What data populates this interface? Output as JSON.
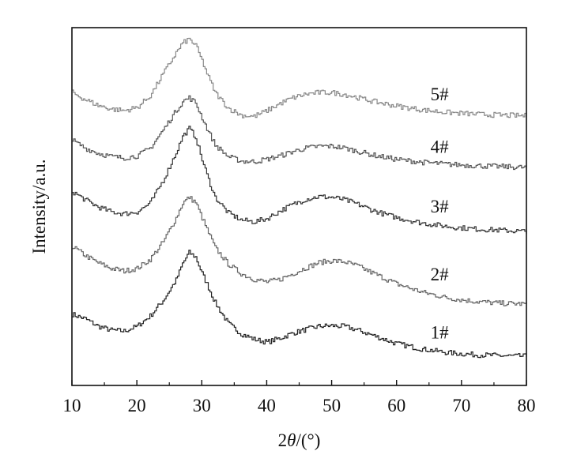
{
  "chart_data": {
    "type": "line",
    "xlabel_prefix": "2",
    "xlabel_theta": "θ",
    "xlabel_suffix": "/(°)",
    "ylabel": "Intensity/a.u.",
    "xlim": [
      10,
      80
    ],
    "ylim": [
      0,
      1
    ],
    "xticks": [
      10,
      20,
      30,
      40,
      50,
      60,
      70,
      80
    ],
    "y_ticks_labeled": false,
    "grid": false,
    "line_color": "#333333",
    "series": [
      {
        "name": "1#",
        "color": "#222222",
        "x": [
          10,
          12,
          14,
          16,
          18,
          20,
          22,
          24,
          26,
          27,
          28,
          29,
          30,
          31,
          32,
          34,
          36,
          38,
          40,
          42,
          44,
          46,
          48,
          50,
          52,
          54,
          56,
          58,
          60,
          64,
          68,
          72,
          76,
          80
        ],
        "y": [
          0.176,
          0.162,
          0.139,
          0.127,
          0.124,
          0.139,
          0.171,
          0.219,
          0.282,
          0.333,
          0.367,
          0.353,
          0.303,
          0.258,
          0.212,
          0.148,
          0.116,
          0.099,
          0.09,
          0.102,
          0.118,
          0.129,
          0.139,
          0.141,
          0.138,
          0.127,
          0.113,
          0.099,
          0.085,
          0.068,
          0.057,
          0.051,
          0.048,
          0.046
        ]
      },
      {
        "name": "2#",
        "color": "#666666",
        "x": [
          10,
          12,
          14,
          16,
          18,
          20,
          22,
          24,
          26,
          27,
          28,
          29,
          30,
          31,
          32,
          34,
          36,
          38,
          40,
          42,
          44,
          46,
          48,
          50,
          52,
          54,
          56,
          58,
          60,
          64,
          68,
          72,
          76,
          80
        ],
        "y": [
          0.386,
          0.358,
          0.335,
          0.318,
          0.31,
          0.318,
          0.346,
          0.4,
          0.474,
          0.52,
          0.538,
          0.522,
          0.474,
          0.427,
          0.382,
          0.332,
          0.302,
          0.284,
          0.276,
          0.284,
          0.302,
          0.32,
          0.336,
          0.342,
          0.338,
          0.325,
          0.306,
          0.288,
          0.27,
          0.244,
          0.226,
          0.216,
          0.21,
          0.208
        ]
      },
      {
        "name": "3#",
        "color": "#333333",
        "x": [
          10,
          12,
          14,
          16,
          18,
          20,
          22,
          24,
          26,
          27,
          28,
          29,
          30,
          31,
          32,
          34,
          36,
          38,
          40,
          42,
          44,
          46,
          48,
          50,
          52,
          54,
          56,
          58,
          60,
          64,
          68,
          72,
          76,
          80
        ],
        "y": [
          0.556,
          0.53,
          0.508,
          0.493,
          0.487,
          0.493,
          0.52,
          0.59,
          0.676,
          0.726,
          0.751,
          0.724,
          0.654,
          0.592,
          0.538,
          0.49,
          0.468,
          0.462,
          0.472,
          0.496,
          0.516,
          0.532,
          0.54,
          0.538,
          0.53,
          0.516,
          0.5,
          0.486,
          0.475,
          0.458,
          0.447,
          0.44,
          0.436,
          0.432
        ]
      },
      {
        "name": "4#",
        "color": "#555555",
        "x": [
          10,
          12,
          14,
          16,
          18,
          20,
          22,
          24,
          26,
          27,
          28,
          29,
          30,
          31,
          32,
          34,
          36,
          38,
          40,
          42,
          44,
          46,
          48,
          50,
          52,
          54,
          56,
          58,
          60,
          64,
          68,
          72,
          76,
          80
        ],
        "y": [
          0.714,
          0.69,
          0.674,
          0.664,
          0.66,
          0.666,
          0.69,
          0.746,
          0.806,
          0.834,
          0.846,
          0.83,
          0.784,
          0.74,
          0.7,
          0.664,
          0.65,
          0.648,
          0.656,
          0.666,
          0.68,
          0.69,
          0.696,
          0.696,
          0.69,
          0.68,
          0.67,
          0.662,
          0.655,
          0.646,
          0.64,
          0.636,
          0.633,
          0.63
        ]
      },
      {
        "name": "5#",
        "color": "#888888",
        "x": [
          10,
          12,
          14,
          16,
          18,
          20,
          22,
          24,
          26,
          27,
          28,
          29,
          30,
          31,
          32,
          34,
          36,
          38,
          40,
          42,
          44,
          46,
          48,
          50,
          52,
          54,
          56,
          58,
          60,
          64,
          68,
          72,
          76,
          80
        ],
        "y": [
          0.862,
          0.84,
          0.822,
          0.811,
          0.806,
          0.816,
          0.852,
          0.92,
          0.985,
          1.015,
          1.027,
          1.008,
          0.96,
          0.908,
          0.862,
          0.814,
          0.792,
          0.788,
          0.806,
          0.828,
          0.846,
          0.857,
          0.862,
          0.862,
          0.856,
          0.846,
          0.836,
          0.828,
          0.82,
          0.808,
          0.8,
          0.795,
          0.792,
          0.79
        ]
      }
    ]
  }
}
